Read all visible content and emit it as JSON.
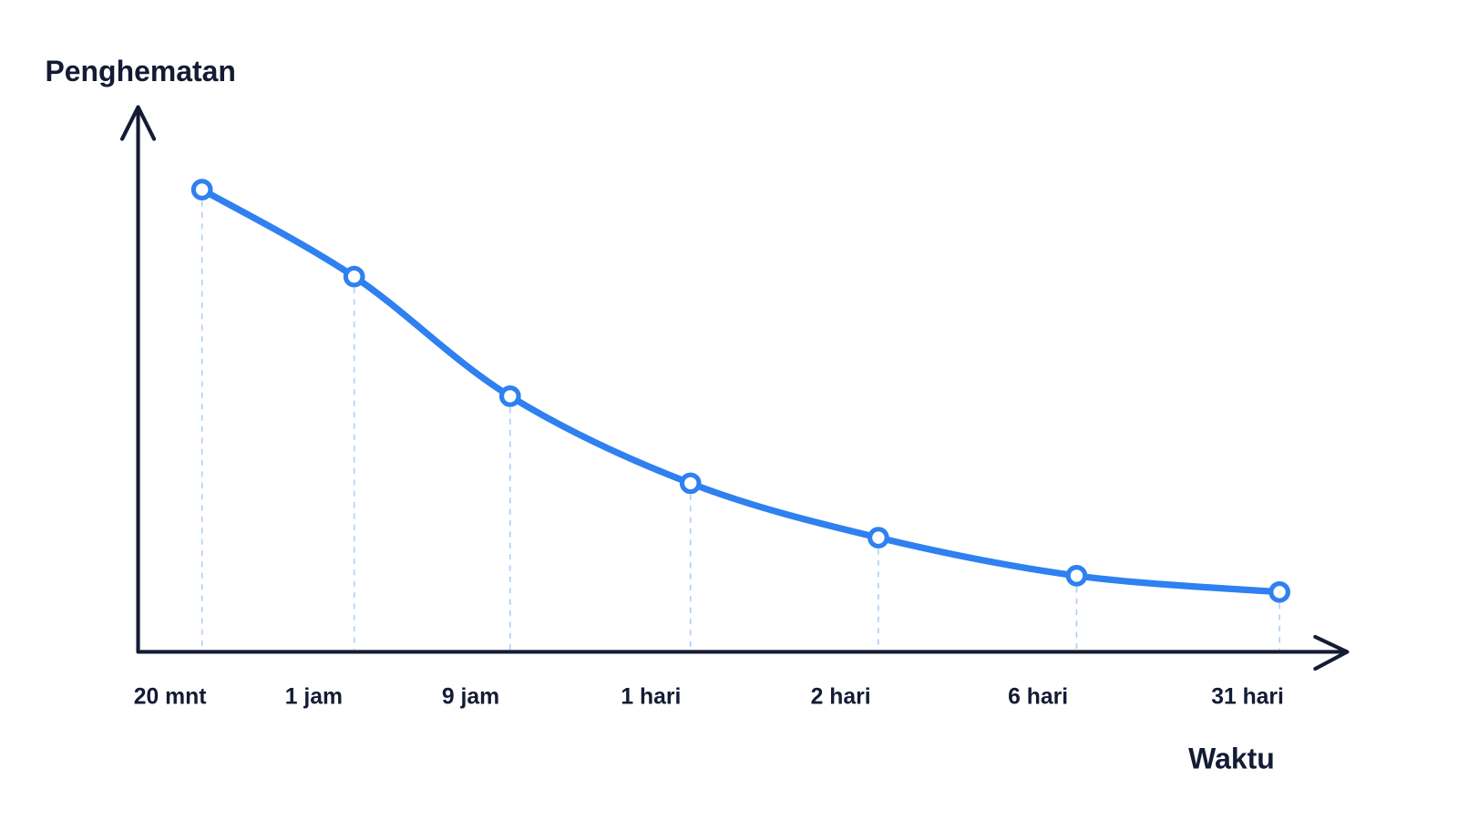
{
  "chart_data": {
    "type": "line",
    "y_label": "Penghematan",
    "x_label": "Waktu",
    "categories": [
      "20 mnt",
      "1 jam",
      "9 jam",
      "1 hari",
      "2 hari",
      "6 hari",
      "31 hari"
    ],
    "values": [
      85,
      69,
      47,
      31,
      21,
      14,
      11
    ],
    "color": "#2f80f0",
    "ylim": [
      0,
      100
    ]
  }
}
